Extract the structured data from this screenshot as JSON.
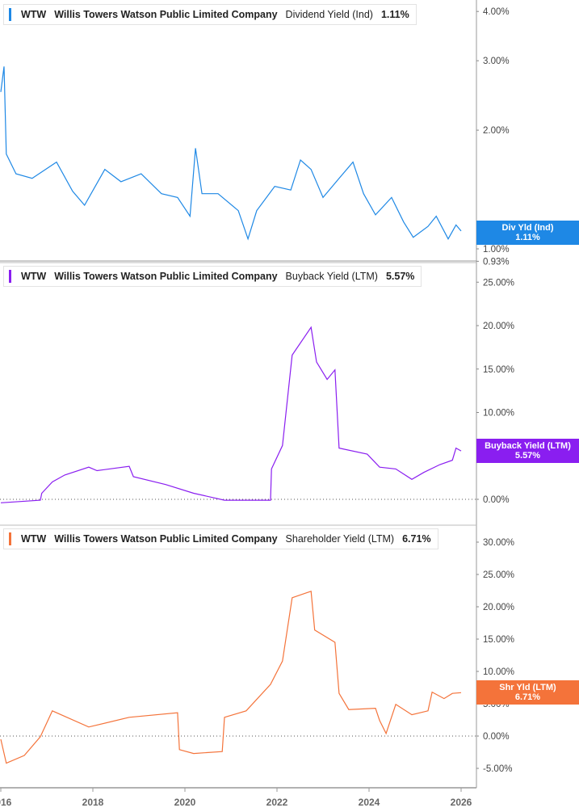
{
  "chart_data": [
    {
      "type": "line",
      "ticker": "WTW",
      "company": "Willis Towers Watson Public Limited Company",
      "metric": "Dividend Yield (Ind)",
      "latest": "1.11%",
      "tag_label": "Div Yld (Ind)",
      "color": "#1e88e5",
      "scale": "log",
      "yticks": [
        "4.00%",
        "3.00%",
        "2.00%",
        "1.00%",
        "0.93%"
      ],
      "ytick_values": [
        4,
        3,
        2,
        1,
        0.93
      ],
      "x": [
        2016.0,
        2016.07,
        2016.12,
        2016.33,
        2016.68,
        2017.21,
        2017.56,
        2017.82,
        2018.26,
        2018.61,
        2019.05,
        2019.49,
        2019.84,
        2020.11,
        2020.23,
        2020.37,
        2020.72,
        2021.16,
        2021.37,
        2021.56,
        2021.95,
        2022.3,
        2022.51,
        2022.74,
        2023.0,
        2023.35,
        2023.65,
        2023.88,
        2024.14,
        2024.49,
        2024.75,
        2024.96,
        2025.28,
        2025.46,
        2025.72,
        2025.89,
        2026.0
      ],
      "y": [
        2.5,
        2.9,
        1.74,
        1.55,
        1.51,
        1.66,
        1.4,
        1.29,
        1.59,
        1.48,
        1.55,
        1.38,
        1.35,
        1.21,
        1.8,
        1.38,
        1.38,
        1.25,
        1.06,
        1.25,
        1.44,
        1.41,
        1.68,
        1.59,
        1.35,
        1.51,
        1.66,
        1.38,
        1.22,
        1.35,
        1.17,
        1.07,
        1.14,
        1.21,
        1.06,
        1.15,
        1.11
      ]
    },
    {
      "type": "line",
      "ticker": "WTW",
      "company": "Willis Towers Watson Public Limited Company",
      "metric": "Buyback Yield (LTM)",
      "latest": "5.57%",
      "tag_label": "Buyback Yield (LTM)",
      "color": "#8a1ef0",
      "scale": "linear",
      "yticks": [
        "25.00%",
        "20.00%",
        "15.00%",
        "10.00%",
        "5.00%",
        "0.00%"
      ],
      "ytick_values": [
        25,
        20,
        15,
        10,
        5,
        0
      ],
      "x": [
        2016.0,
        2016.86,
        2016.89,
        2017.12,
        2017.39,
        2017.91,
        2018.09,
        2018.79,
        2018.88,
        2019.58,
        2020.19,
        2020.86,
        2021.86,
        2021.88,
        2022.12,
        2022.33,
        2022.74,
        2022.86,
        2023.09,
        2023.26,
        2023.35,
        2023.96,
        2024.23,
        2024.58,
        2024.93,
        2025.19,
        2025.54,
        2025.81,
        2025.89,
        2026.0
      ],
      "y": [
        -0.4,
        -0.1,
        0.7,
        2.0,
        2.8,
        3.7,
        3.3,
        3.8,
        2.6,
        1.7,
        0.7,
        -0.1,
        -0.1,
        3.5,
        6.2,
        16.6,
        19.8,
        15.8,
        13.8,
        14.9,
        5.9,
        5.2,
        3.7,
        3.5,
        2.3,
        3.1,
        4.0,
        4.5,
        5.9,
        5.57
      ]
    },
    {
      "type": "line",
      "ticker": "WTW",
      "company": "Willis Towers Watson Public Limited Company",
      "metric": "Shareholder Yield (LTM)",
      "latest": "6.71%",
      "tag_label": "Shr Yld (LTM)",
      "color": "#f4733a",
      "scale": "linear",
      "yticks": [
        "30.00%",
        "25.00%",
        "20.00%",
        "15.00%",
        "10.00%",
        "5.00%",
        "0.00%",
        "-5.00%"
      ],
      "ytick_values": [
        30,
        25,
        20,
        15,
        10,
        5,
        0,
        -5
      ],
      "x": [
        2016.0,
        2016.12,
        2016.51,
        2016.86,
        2017.12,
        2017.91,
        2018.79,
        2019.84,
        2019.88,
        2020.19,
        2020.81,
        2020.86,
        2021.33,
        2021.86,
        2022.12,
        2022.33,
        2022.74,
        2022.82,
        2023.26,
        2023.35,
        2023.56,
        2024.14,
        2024.23,
        2024.37,
        2024.58,
        2024.93,
        2025.28,
        2025.37,
        2025.63,
        2025.81,
        2026.0
      ],
      "y": [
        -0.5,
        -4.2,
        -3.0,
        -0.1,
        3.9,
        1.4,
        2.9,
        3.6,
        -2.1,
        -2.7,
        -2.4,
        2.9,
        3.9,
        8.0,
        11.6,
        21.4,
        22.4,
        16.4,
        14.5,
        6.6,
        4.1,
        4.3,
        2.4,
        0.4,
        4.9,
        3.3,
        3.9,
        6.8,
        5.8,
        6.6,
        6.71
      ]
    }
  ],
  "x_axis": {
    "ticks": [
      "2016",
      "2018",
      "2020",
      "2022",
      "2024",
      "2026"
    ],
    "tick_values": [
      2016,
      2018,
      2020,
      2022,
      2024,
      2026
    ]
  }
}
